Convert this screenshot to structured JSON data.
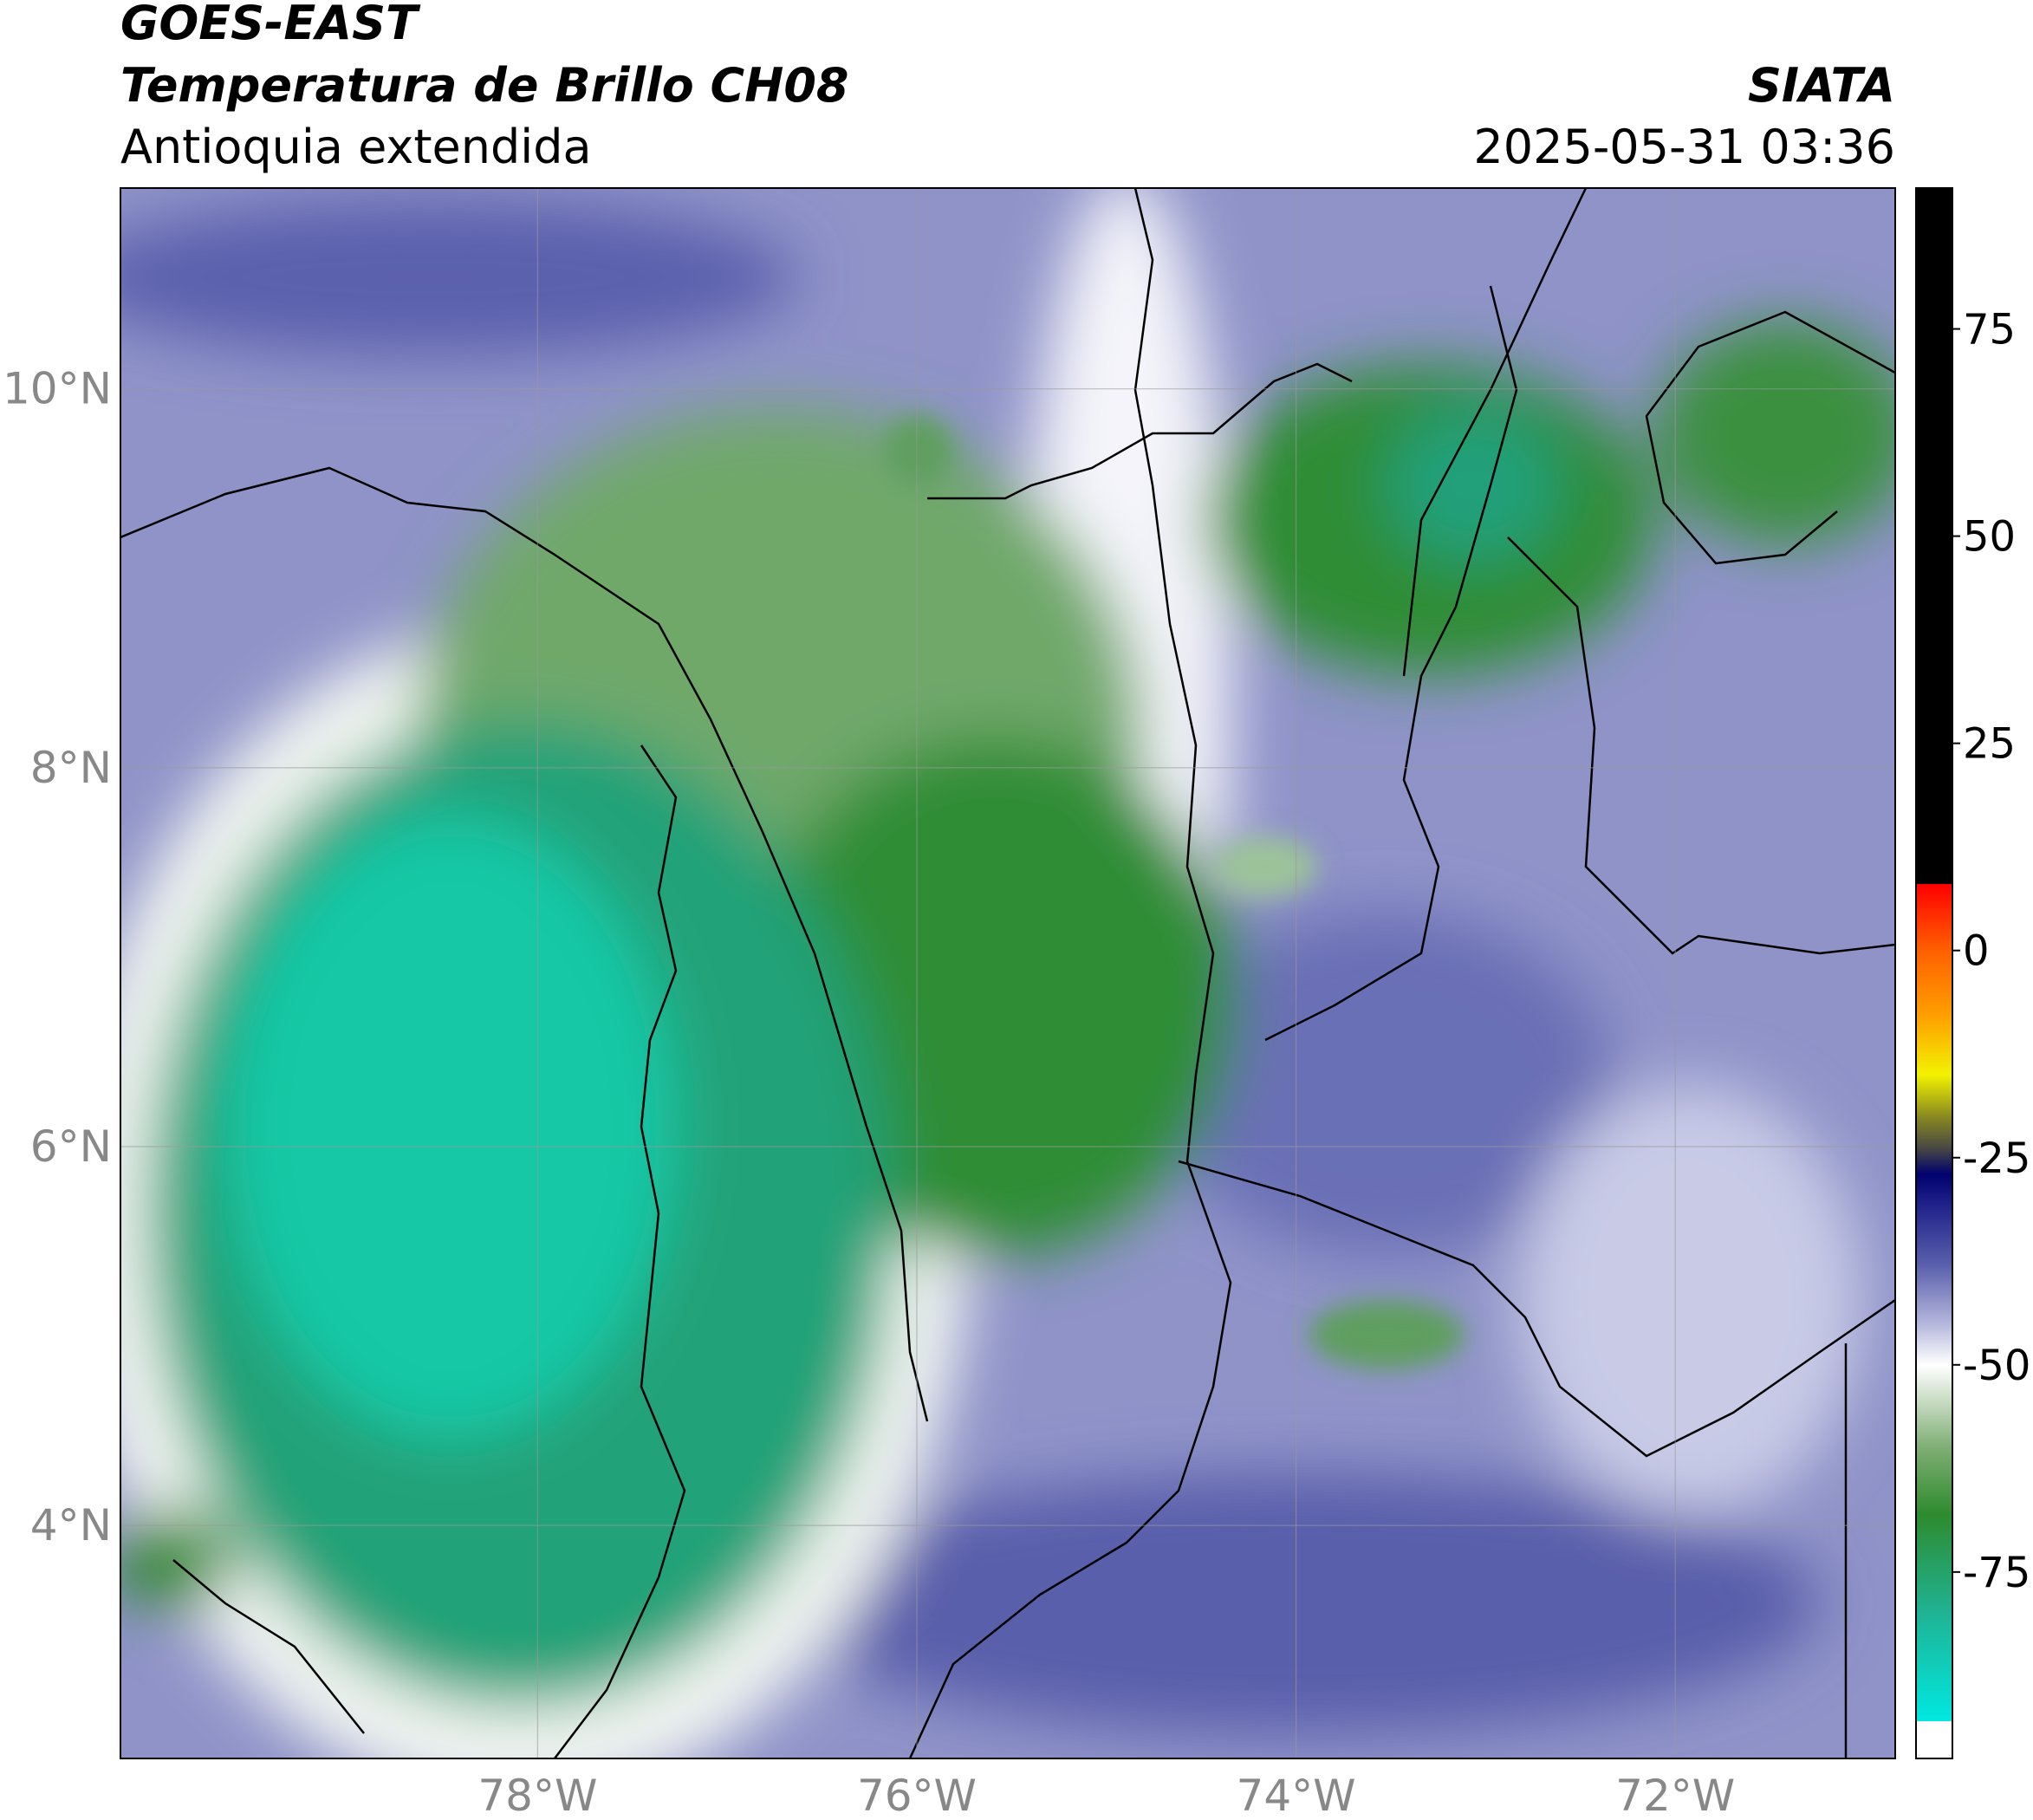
{
  "header": {
    "title": "GOES-EAST",
    "subtitle": "Temperatura de Brillo CH08",
    "region": "Antioquia extendida",
    "source": "SIATA",
    "datetime": "2025-05-31 03:36"
  },
  "map": {
    "lon_range": [
      -80.2,
      -70.84
    ],
    "lat_range": [
      2.77,
      11.06
    ],
    "lon_ticks": [
      {
        "value": -78,
        "label": "78°W"
      },
      {
        "value": -76,
        "label": "76°W"
      },
      {
        "value": -74,
        "label": "74°W"
      },
      {
        "value": -72,
        "label": "72°W"
      }
    ],
    "lat_ticks": [
      {
        "value": 10,
        "label": "10°N"
      },
      {
        "value": 8,
        "label": "8°N"
      },
      {
        "value": 6,
        "label": "6°N"
      },
      {
        "value": 4,
        "label": "4°N"
      }
    ]
  },
  "colorbar": {
    "range": [
      -97.5,
      92
    ],
    "ticks": [
      75,
      50,
      25,
      0,
      -25,
      -50,
      -75
    ],
    "stops": [
      {
        "value": -97.5,
        "color": "#ffffff"
      },
      {
        "value": -93,
        "color": "#ffffff"
      },
      {
        "value": -93,
        "color": "#00e8e0"
      },
      {
        "value": -80,
        "color": "#1fb394"
      },
      {
        "value": -68,
        "color": "#2e8b2e"
      },
      {
        "value": -60,
        "color": "#7fae74"
      },
      {
        "value": -52,
        "color": "#e6efe4"
      },
      {
        "value": -50,
        "color": "#ffffff"
      },
      {
        "value": -45,
        "color": "#b4b6dc"
      },
      {
        "value": -38,
        "color": "#5a60ac"
      },
      {
        "value": -30,
        "color": "#1a1c86"
      },
      {
        "value": -27,
        "color": "#00006e"
      },
      {
        "value": -24,
        "color": "#454545"
      },
      {
        "value": -20,
        "color": "#8a8a20"
      },
      {
        "value": -15,
        "color": "#f2f200"
      },
      {
        "value": -8,
        "color": "#ffa000"
      },
      {
        "value": 0,
        "color": "#ff6000"
      },
      {
        "value": 8,
        "color": "#ff0000"
      },
      {
        "value": 8,
        "color": "#000000"
      },
      {
        "value": 92,
        "color": "#000000"
      }
    ]
  }
}
